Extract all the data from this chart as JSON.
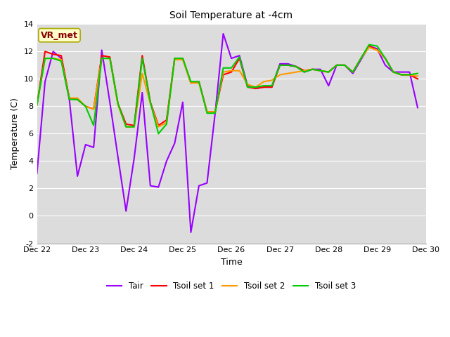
{
  "title": "Soil Temperature at -4cm",
  "xlabel": "Time",
  "ylabel": "Temperature (C)",
  "ylim": [
    -2,
    14
  ],
  "outer_background": "#ffffff",
  "plot_background": "#dcdcdc",
  "annotation_text": "VR_met",
  "annotation_box_color": "#ffffcc",
  "annotation_border_color": "#aaaa00",
  "annotation_text_color": "#880000",
  "x_ticks": [
    0,
    24,
    48,
    72,
    96,
    120,
    144,
    168,
    192
  ],
  "x_tick_labels": [
    "Dec 22",
    "Dec 23",
    "Dec 24",
    "Dec 25",
    "Dec 26",
    "Dec 27",
    "Dec 28",
    "Dec 29",
    "Dec 30"
  ],
  "Tair": [
    3.1,
    9.8,
    12.0,
    11.5,
    8.5,
    2.9,
    5.2,
    5.0,
    12.1,
    8.3,
    4.3,
    0.35,
    4.2,
    9.0,
    2.2,
    2.1,
    4.0,
    5.3,
    8.3,
    -1.2,
    2.2,
    2.4,
    7.5,
    13.3,
    11.5,
    11.7,
    9.5,
    9.3,
    9.4,
    9.4,
    11.1,
    11.1,
    10.9,
    10.5,
    10.7,
    10.7,
    9.5,
    11.0,
    11.0,
    10.4,
    11.4,
    12.4,
    12.2,
    11.0,
    10.5,
    10.5,
    10.5,
    7.9
  ],
  "Tsoil1": [
    8.1,
    12.0,
    11.8,
    11.7,
    8.6,
    8.5,
    8.0,
    7.8,
    11.7,
    11.6,
    8.2,
    6.7,
    6.6,
    11.7,
    8.3,
    6.6,
    7.0,
    11.5,
    11.5,
    9.7,
    9.8,
    7.6,
    7.6,
    10.3,
    10.5,
    11.5,
    9.4,
    9.3,
    9.4,
    9.4,
    11.0,
    11.0,
    10.9,
    10.6,
    10.7,
    10.6,
    10.5,
    11.0,
    11.0,
    10.5,
    11.5,
    12.4,
    12.1,
    11.5,
    10.5,
    10.3,
    10.3,
    10.0
  ],
  "Tsoil2": [
    8.1,
    11.5,
    11.5,
    11.4,
    8.6,
    8.6,
    8.0,
    7.8,
    11.5,
    11.5,
    8.1,
    6.5,
    6.5,
    10.4,
    8.2,
    6.5,
    6.8,
    11.4,
    11.4,
    9.7,
    9.7,
    7.6,
    7.6,
    10.5,
    10.6,
    10.6,
    9.6,
    9.4,
    9.8,
    9.9,
    10.3,
    10.4,
    10.5,
    10.6,
    10.7,
    10.6,
    10.5,
    11.0,
    11.0,
    10.5,
    11.5,
    12.3,
    12.1,
    11.5,
    10.5,
    10.3,
    10.3,
    10.2
  ],
  "Tsoil3": [
    8.1,
    11.5,
    11.5,
    11.3,
    8.5,
    8.5,
    8.0,
    6.6,
    11.5,
    11.5,
    8.2,
    6.5,
    6.5,
    11.5,
    8.3,
    6.0,
    6.7,
    11.5,
    11.5,
    9.8,
    9.8,
    7.5,
    7.5,
    10.8,
    10.8,
    11.6,
    9.4,
    9.4,
    9.5,
    9.5,
    11.0,
    11.0,
    10.9,
    10.5,
    10.7,
    10.6,
    10.5,
    11.0,
    11.0,
    10.5,
    11.5,
    12.5,
    12.4,
    11.5,
    10.5,
    10.3,
    10.3,
    10.4
  ],
  "Tair_color": "#9900ff",
  "Tsoil1_color": "#ff0000",
  "Tsoil2_color": "#ff9900",
  "Tsoil3_color": "#00cc00",
  "grid_color": "#ffffff",
  "linewidth": 1.5,
  "yticks": [
    -2,
    0,
    2,
    4,
    6,
    8,
    10,
    12,
    14
  ],
  "ytick_labels": [
    "-2",
    "0",
    "2",
    "4",
    "6",
    "8",
    "10",
    "12",
    "14"
  ]
}
